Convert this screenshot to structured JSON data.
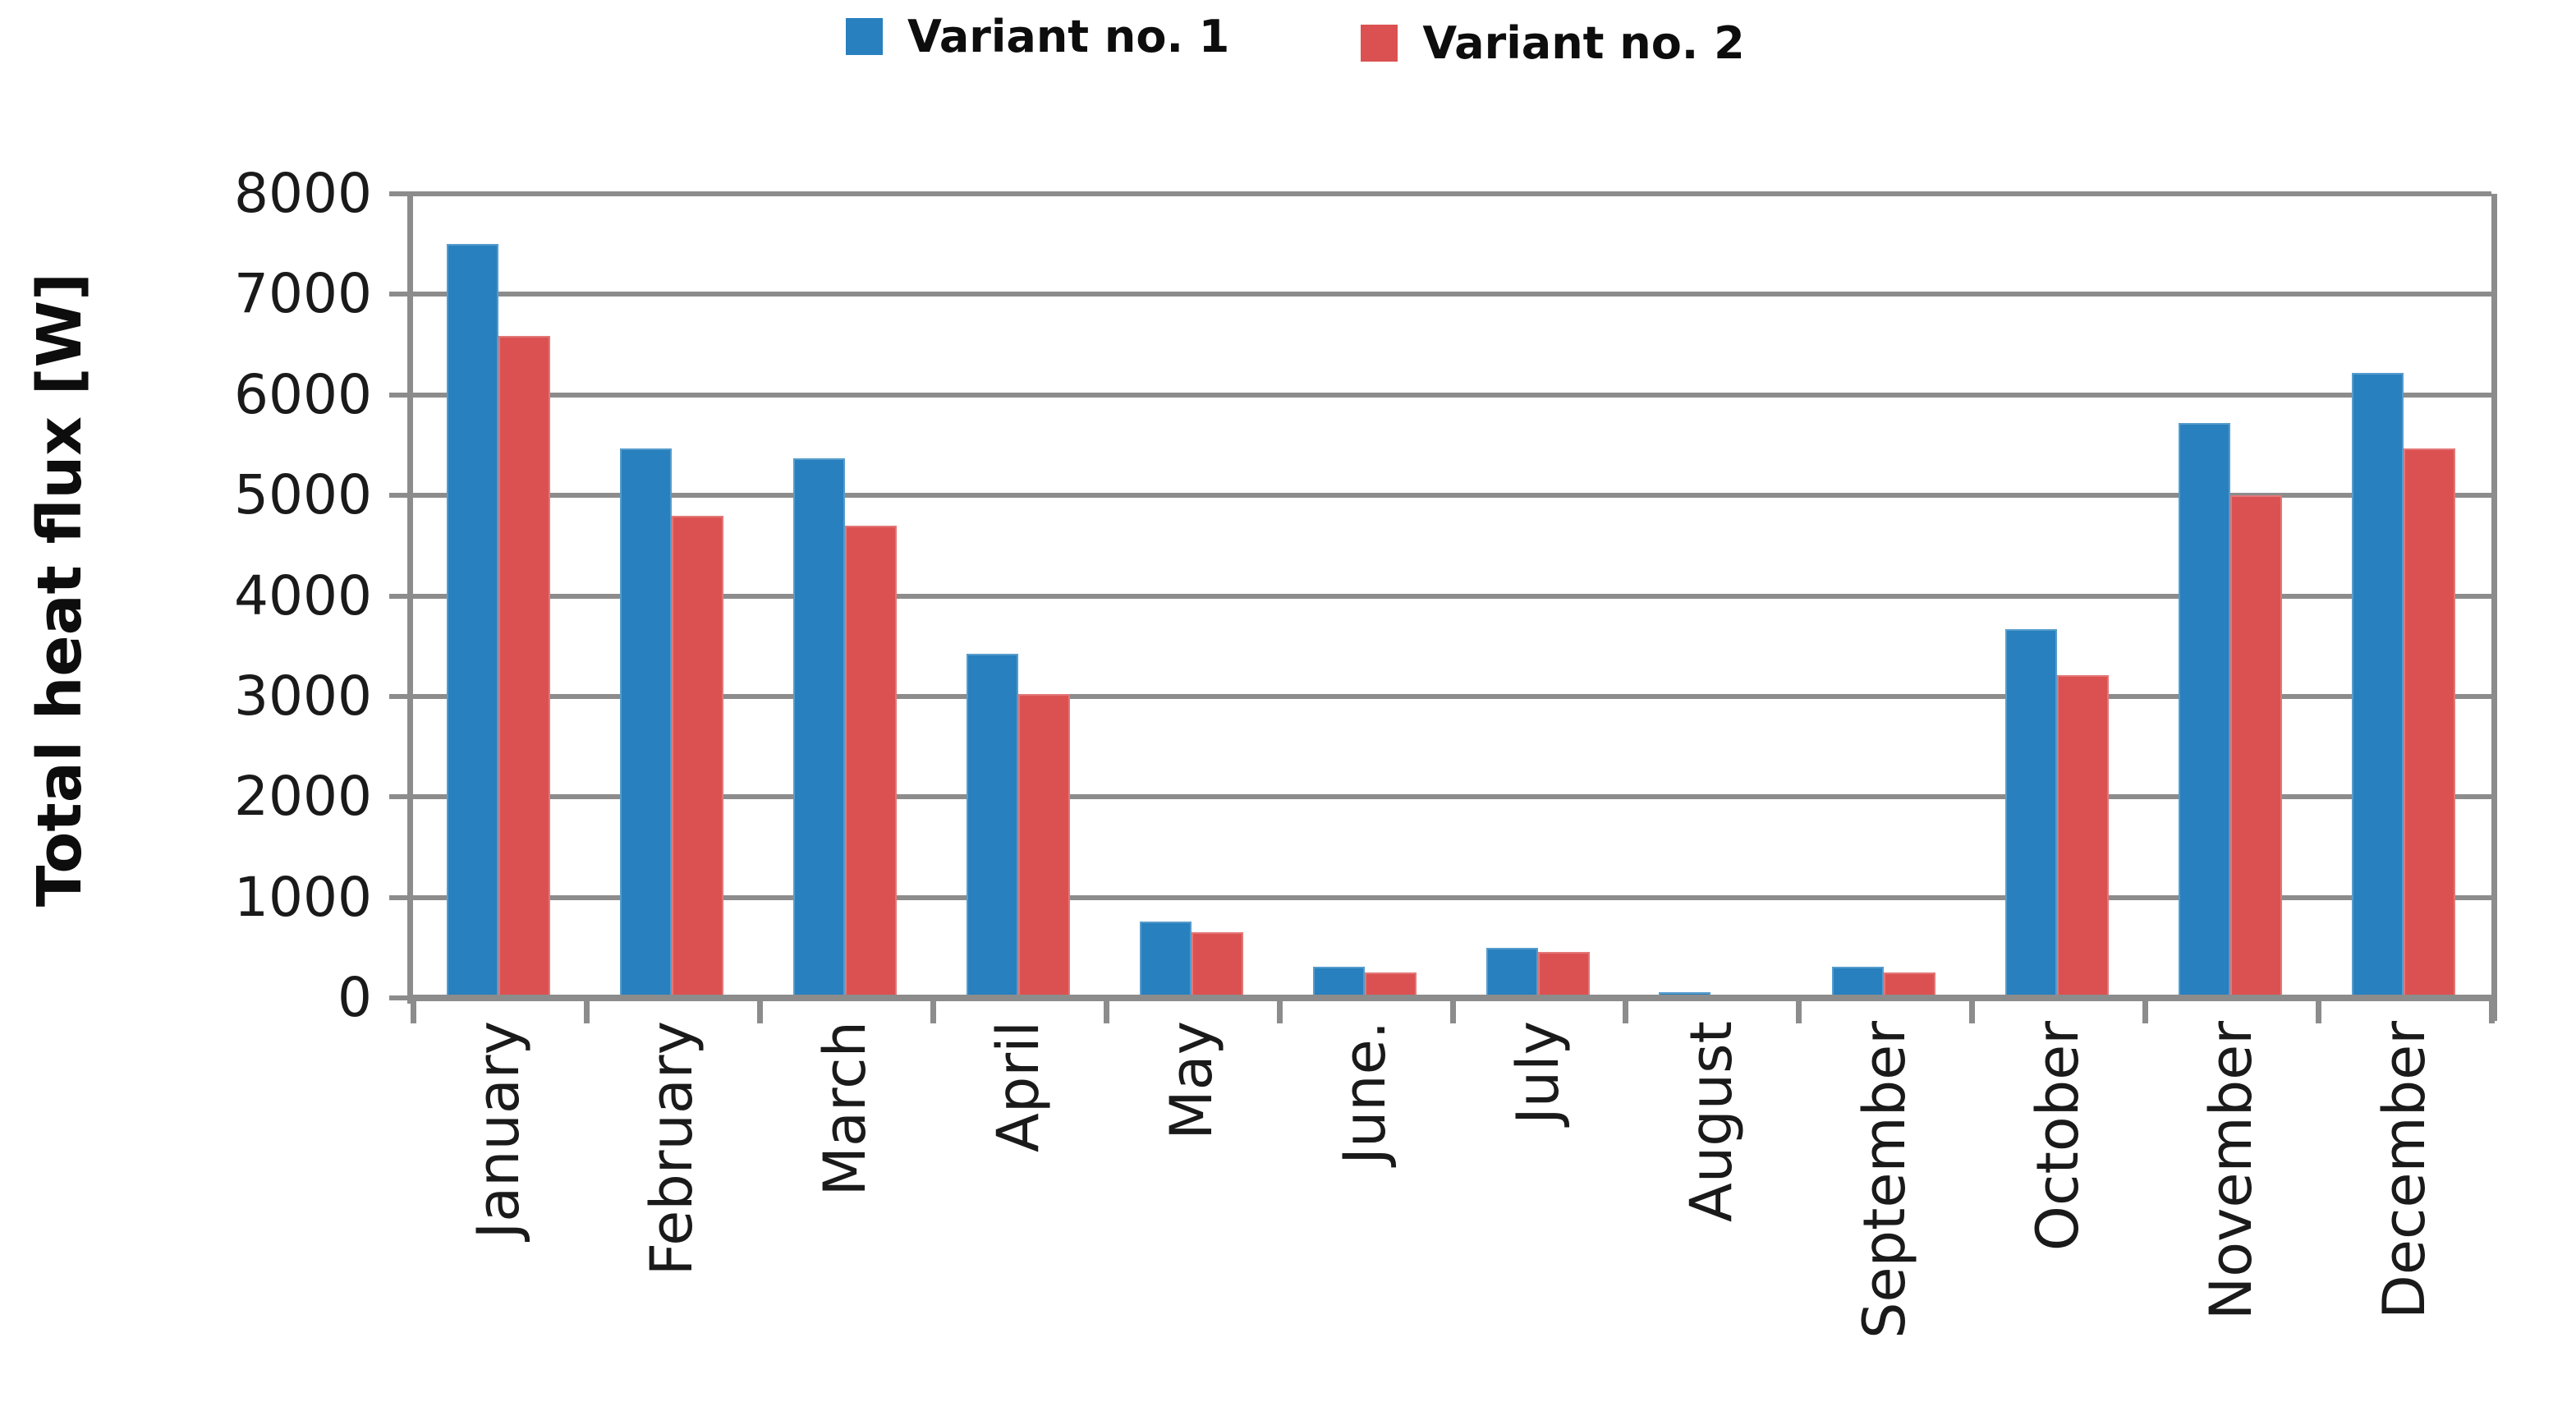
{
  "chart_data": {
    "type": "bar",
    "title": "",
    "xlabel": "",
    "ylabel": "Total heat flux [W]",
    "ylim": [
      0,
      8000
    ],
    "ytick_step": 1000,
    "grid": true,
    "legend_position": "top-center",
    "categories": [
      "January",
      "February",
      "March",
      "April",
      "May",
      "June.",
      "July",
      "August",
      "September",
      "October",
      "November",
      "December"
    ],
    "series": [
      {
        "name": "Variant no. 1",
        "color": "#2880BE",
        "values": [
          7500,
          5470,
          5370,
          3420,
          760,
          310,
          500,
          60,
          310,
          3670,
          5720,
          6220
        ]
      },
      {
        "name": "Variant no. 2",
        "color": "#DB5151",
        "values": [
          6590,
          4800,
          4700,
          3020,
          650,
          250,
          460,
          0,
          250,
          3210,
          5000,
          5470
        ]
      }
    ],
    "colors": {
      "grid": "#8C8C8C",
      "axis": "#8C8C8C",
      "text": "#1a1a1a"
    }
  }
}
